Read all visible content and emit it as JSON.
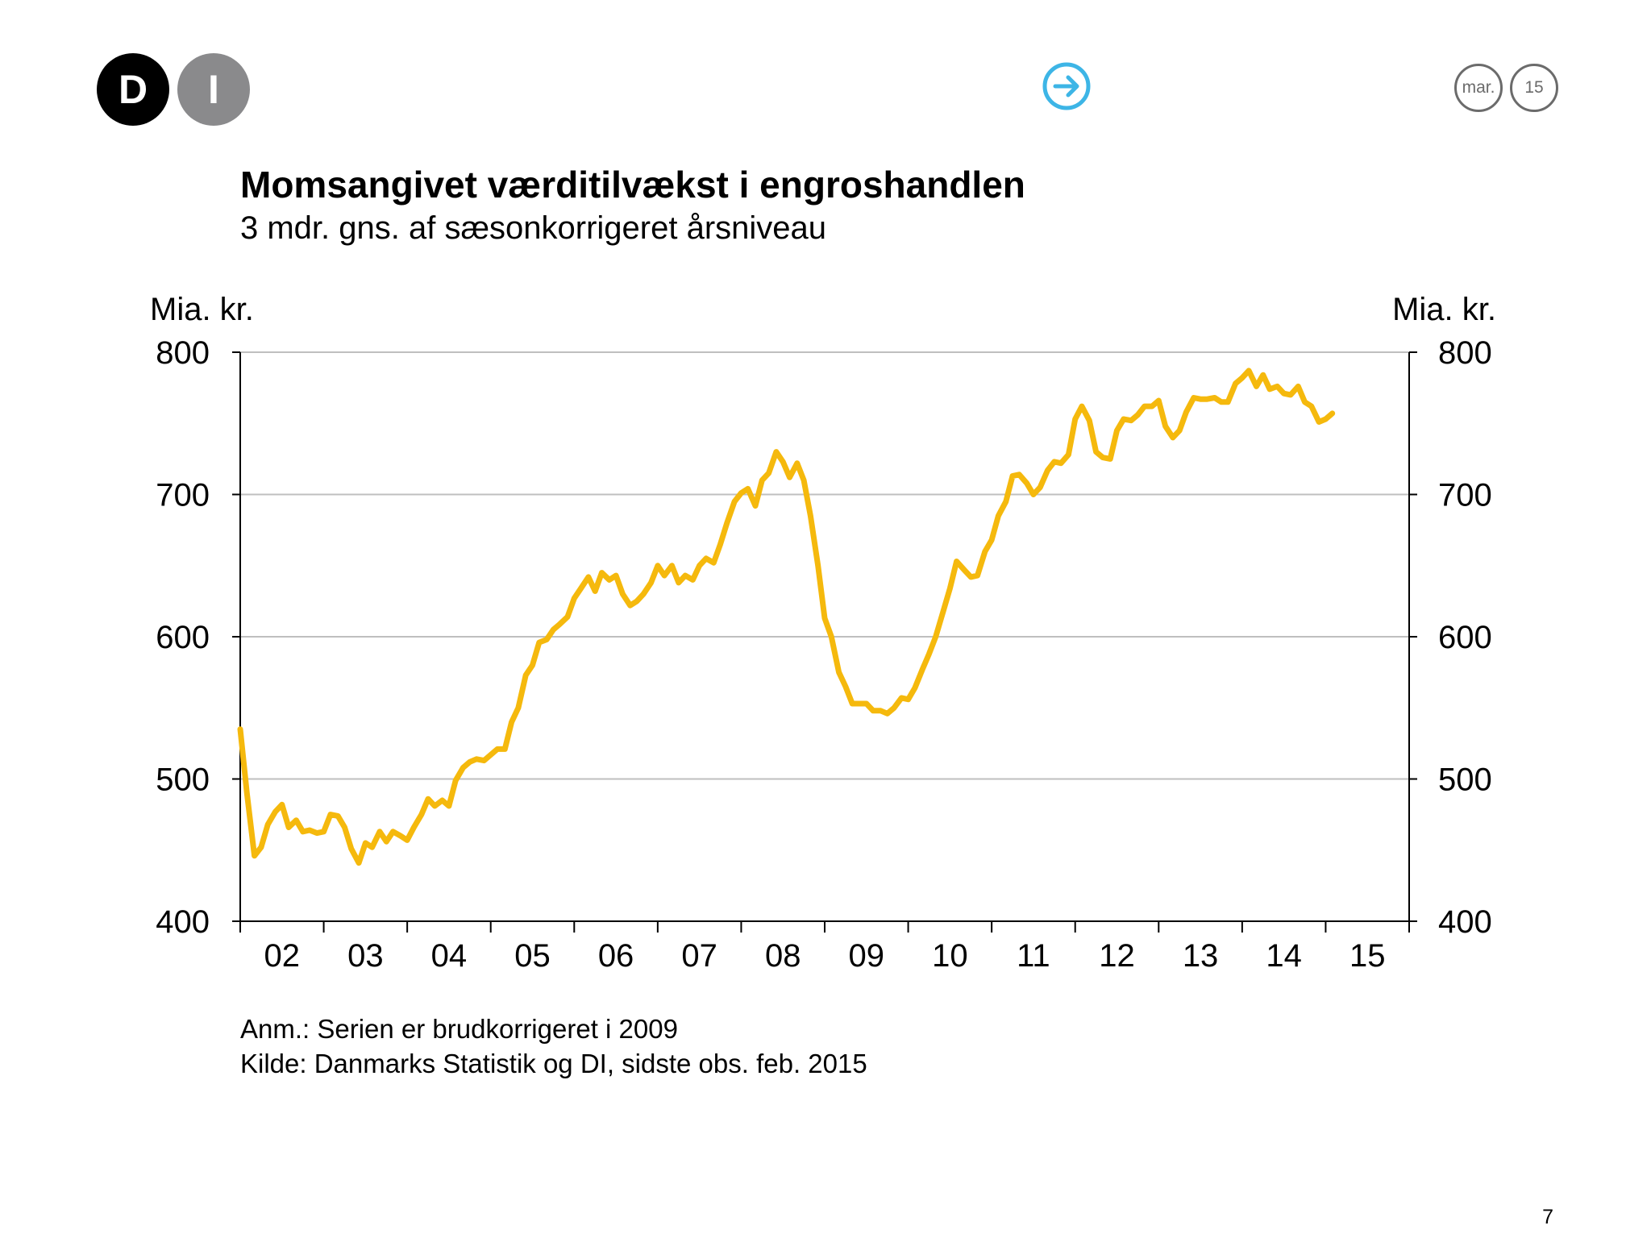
{
  "logo": {
    "letter1": "D",
    "letter2": "I"
  },
  "header": {
    "month": "mar.",
    "year": "15"
  },
  "title": "Momsangivet værditilvækst i engroshandlen",
  "subtitle": "3 mdr. gns. af sæsonkorrigeret årsniveau",
  "footnote": {
    "note": "Anm.: Serien er brudkorrigeret i 2009",
    "source": "Kilde: Danmarks Statistik og DI, sidste obs. feb. 2015"
  },
  "page_number": "7",
  "colors": {
    "line": "#F5B90D",
    "grid": "#BFBFBF",
    "axis": "#000000",
    "arrow": "#3DB5E6",
    "logo_dark": "#000000",
    "logo_grey": "#8A8A8C"
  },
  "chart_data": {
    "type": "line",
    "title": "Momsangivet værditilvækst i engroshandlen",
    "subtitle": "3 mdr. gns. af sæsonkorrigeret årsniveau",
    "ylabel_left": "Mia. kr.",
    "ylabel_right": "Mia. kr.",
    "ylim": [
      400,
      800
    ],
    "yticks": [
      400,
      500,
      600,
      700,
      800
    ],
    "xlim": [
      2002.0,
      2016.0
    ],
    "year_labels": [
      "02",
      "03",
      "04",
      "05",
      "06",
      "07",
      "08",
      "09",
      "10",
      "11",
      "12",
      "13",
      "14",
      "15"
    ],
    "grid": true,
    "legend": "none",
    "series": [
      {
        "name": "Momsangivet værditilvækst i engroshandlen",
        "x": [
          2002.0,
          2002.08,
          2002.17,
          2002.25,
          2002.33,
          2002.42,
          2002.5,
          2002.58,
          2002.67,
          2002.75,
          2002.83,
          2002.92,
          2003.0,
          2003.08,
          2003.17,
          2003.25,
          2003.33,
          2003.42,
          2003.5,
          2003.58,
          2003.67,
          2003.75,
          2003.83,
          2003.92,
          2004.0,
          2004.08,
          2004.17,
          2004.25,
          2004.33,
          2004.42,
          2004.5,
          2004.58,
          2004.67,
          2004.75,
          2004.83,
          2004.92,
          2005.0,
          2005.08,
          2005.17,
          2005.25,
          2005.33,
          2005.42,
          2005.5,
          2005.58,
          2005.67,
          2005.75,
          2005.83,
          2005.92,
          2006.0,
          2006.08,
          2006.17,
          2006.25,
          2006.33,
          2006.42,
          2006.5,
          2006.58,
          2006.67,
          2006.75,
          2006.83,
          2006.92,
          2007.0,
          2007.08,
          2007.17,
          2007.25,
          2007.33,
          2007.42,
          2007.5,
          2007.58,
          2007.67,
          2007.75,
          2007.83,
          2007.92,
          2008.0,
          2008.08,
          2008.17,
          2008.25,
          2008.33,
          2008.42,
          2008.5,
          2008.58,
          2008.67,
          2008.75,
          2008.83,
          2008.92,
          2009.0,
          2009.08,
          2009.17,
          2009.25,
          2009.33,
          2009.42,
          2009.5,
          2009.58,
          2009.67,
          2009.75,
          2009.83,
          2009.92,
          2010.0,
          2010.08,
          2010.17,
          2010.25,
          2010.33,
          2010.42,
          2010.5,
          2010.58,
          2010.67,
          2010.75,
          2010.83,
          2010.92,
          2011.0,
          2011.08,
          2011.17,
          2011.25,
          2011.33,
          2011.42,
          2011.5,
          2011.58,
          2011.67,
          2011.75,
          2011.83,
          2011.92,
          2012.0,
          2012.08,
          2012.17,
          2012.25,
          2012.33,
          2012.42,
          2012.5,
          2012.58,
          2012.67,
          2012.75,
          2012.83,
          2012.92,
          2013.0,
          2013.08,
          2013.17,
          2013.25,
          2013.33,
          2013.42,
          2013.5,
          2013.58,
          2013.67,
          2013.75,
          2013.83,
          2013.92,
          2014.0,
          2014.08,
          2014.17,
          2014.25,
          2014.33,
          2014.42,
          2014.5,
          2014.58,
          2014.67,
          2014.75,
          2014.83,
          2014.92,
          2015.0,
          2015.08
        ],
        "values": [
          535,
          490,
          446,
          452,
          468,
          477,
          482,
          466,
          471,
          463,
          464,
          462,
          463,
          475,
          474,
          466,
          451,
          441,
          455,
          452,
          463,
          456,
          463,
          460,
          457,
          466,
          475,
          486,
          481,
          485,
          481,
          499,
          508,
          512,
          514,
          513,
          517,
          521,
          521,
          540,
          550,
          573,
          580,
          596,
          598,
          605,
          609,
          614,
          627,
          634,
          642,
          632,
          645,
          640,
          643,
          630,
          622,
          625,
          630,
          638,
          650,
          643,
          650,
          638,
          643,
          640,
          650,
          655,
          652,
          665,
          680,
          695,
          701,
          704,
          692,
          710,
          715,
          730,
          723,
          712,
          722,
          710,
          685,
          650,
          613,
          600,
          575,
          565,
          553,
          553,
          553,
          548,
          548,
          546,
          550,
          557,
          556,
          564,
          577,
          588,
          600,
          618,
          634,
          653,
          647,
          642,
          643,
          660,
          668,
          685,
          695,
          713,
          714,
          708,
          700,
          705,
          717,
          723,
          722,
          728,
          753,
          762,
          752,
          730,
          726,
          725,
          745,
          753,
          752,
          756,
          762,
          762,
          766,
          748,
          740,
          745,
          758,
          768,
          767,
          767,
          768,
          765,
          765,
          778,
          782,
          787,
          776,
          784,
          774,
          776,
          771,
          770,
          776,
          765,
          762,
          751,
          753,
          757
        ]
      }
    ]
  }
}
